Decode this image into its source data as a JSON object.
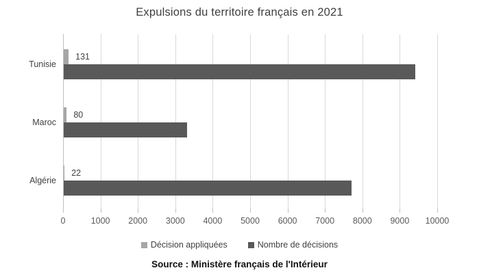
{
  "source": "Source : Ministère français de l'Intérieur",
  "colors": {
    "applied_bar": "#a6a6a6",
    "decisions_bar": "#595959",
    "gridline": "#d9d9d9",
    "axis_line": "#bfbfbf",
    "title_text": "#404040",
    "tick_text": "#595959"
  },
  "chart_data": {
    "type": "bar",
    "orientation": "horizontal",
    "title": "Expulsions du territoire français en 2021",
    "categories": [
      "Tunisie",
      "Maroc",
      "Algérie"
    ],
    "series": [
      {
        "name": "Décision appliquées",
        "color": "#a6a6a6",
        "values": [
          131,
          80,
          22
        ],
        "data_labels": [
          131,
          80,
          22
        ]
      },
      {
        "name": "Nombre de décisions",
        "color": "#595959",
        "values": [
          9400,
          3300,
          7700
        ],
        "data_labels": null
      }
    ],
    "xlim": [
      0,
      10000
    ],
    "x_ticks": [
      0,
      1000,
      2000,
      3000,
      4000,
      5000,
      6000,
      7000,
      8000,
      9000,
      10000
    ],
    "grid": "vertical",
    "legend_position": "bottom"
  }
}
